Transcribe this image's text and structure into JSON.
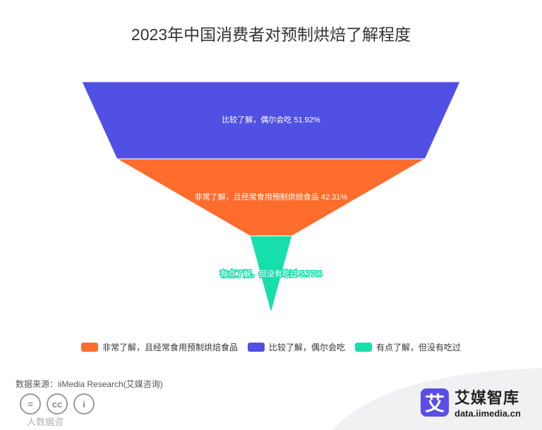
{
  "chart_data": {
    "type": "funnel",
    "title": "2023年中国消费者对预制烘焙了解程度",
    "series": [
      {
        "name": "比较了解，偶尔会吃",
        "value": 51.92,
        "label": "比较了解，偶尔会吃 51.92%",
        "color": "#5150e4"
      },
      {
        "name": "非常了解，且经常食用预制烘焙食品",
        "value": 42.31,
        "label": "非常了解，且经常食用预制烘焙食品 42.31%",
        "color": "#ff6d2d"
      },
      {
        "name": "有点了解，但没有吃过",
        "value": 5.77,
        "label": "有点了解，但没有吃过 5.77%",
        "color": "#16dfab"
      }
    ],
    "legend": [
      {
        "label": "非常了解，且经常食用预制烘焙食品",
        "color": "#ff6d2d"
      },
      {
        "label": "比较了解，偶尔会吃",
        "color": "#5150e4"
      },
      {
        "label": "有点了解，但没有吃过",
        "color": "#16dfab"
      }
    ],
    "legend_position": "bottom"
  },
  "footer": {
    "source": "数据来源：iiMedia Research(艾媒咨询)",
    "license_text": "人数据咨",
    "cc_labels": [
      "=",
      "cc",
      "i"
    ],
    "brand_mark": "艾",
    "brand_name": "艾媒智库",
    "brand_url": "data.iimedia.cn"
  }
}
